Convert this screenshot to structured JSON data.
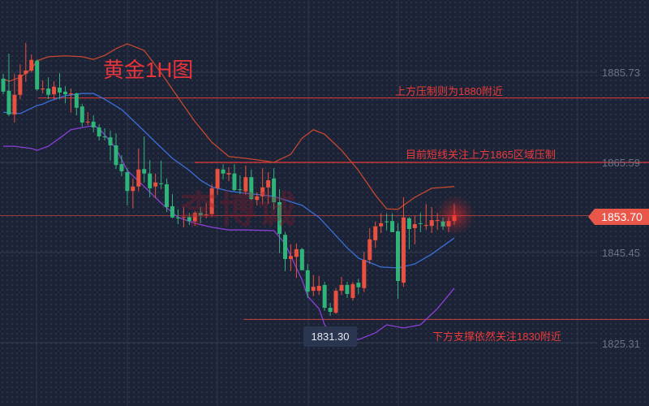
{
  "title": "黄金1H图",
  "watermark": "李博诚",
  "annotations": {
    "resistance_1880": "上方压制则为1880附近",
    "resistance_1865": "目前短线关注上方1865区域压制",
    "support_1830": "下方支撑依然关注1830附近"
  },
  "current_price_label": "1853.70",
  "low_label": "1831.30",
  "colors": {
    "up": "#e8513f",
    "down": "#2fb47a",
    "upper_band": "#c4472f",
    "middle_band": "#3b6fd9",
    "lower_band": "#8b40d8",
    "level_line": "#e83a3a",
    "background": "#1c2336"
  },
  "chart_data": {
    "type": "candlestick",
    "title": "黄金1H图",
    "y_ticks": [
      "1885.73",
      "1865.59",
      "1845.45",
      "1825.31"
    ],
    "ylim": [
      1814.0,
      1903.0
    ],
    "grid": true,
    "horizontal_levels": [
      1880,
      1865.59,
      1853.7,
      1830.5
    ],
    "candles": [
      [
        1884.3,
        1885.4,
        1880.8,
        1881.4
      ],
      [
        1881.6,
        1889.9,
        1875.9,
        1876.3
      ],
      [
        1876.3,
        1885.4,
        1874.5,
        1880.7
      ],
      [
        1880.7,
        1887.5,
        1879.7,
        1885.2
      ],
      [
        1885.4,
        1892.3,
        1883.6,
        1886.1
      ],
      [
        1886.1,
        1889.7,
        1885.7,
        1888.5
      ],
      [
        1888.3,
        1888.6,
        1881.6,
        1881.9
      ],
      [
        1881.9,
        1883.9,
        1881.0,
        1882.1
      ],
      [
        1882.1,
        1884.6,
        1879.7,
        1880.7
      ],
      [
        1880.8,
        1883.7,
        1879.7,
        1882.5
      ],
      [
        1882.3,
        1885.5,
        1879.7,
        1881.2
      ],
      [
        1881.4,
        1882.6,
        1878.8,
        1880.8
      ],
      [
        1880.8,
        1882.1,
        1876.7,
        1881.0
      ],
      [
        1881.0,
        1881.2,
        1876.1,
        1877.8
      ],
      [
        1878.1,
        1878.7,
        1873.6,
        1874.5
      ],
      [
        1874.5,
        1876.8,
        1873.9,
        1874.7
      ],
      [
        1874.7,
        1876.1,
        1872.3,
        1873.4
      ],
      [
        1873.4,
        1874.1,
        1870.5,
        1871.4
      ],
      [
        1871.4,
        1873.2,
        1870.5,
        1871.2
      ],
      [
        1871.2,
        1872.7,
        1866.0,
        1869.4
      ],
      [
        1869.4,
        1872.1,
        1864.1,
        1865.0
      ],
      [
        1865.2,
        1867.2,
        1862.5,
        1863.6
      ],
      [
        1863.4,
        1864.3,
        1856.0,
        1859.2
      ],
      [
        1859.2,
        1862.0,
        1855.3,
        1860.2
      ],
      [
        1860.2,
        1868.7,
        1859.1,
        1864.0
      ],
      [
        1864.1,
        1871.4,
        1861.1,
        1863.1
      ],
      [
        1863.1,
        1866.1,
        1857.8,
        1859.8
      ],
      [
        1860.2,
        1863.1,
        1857.6,
        1861.1
      ],
      [
        1860.9,
        1866.0,
        1859.6,
        1860.7
      ],
      [
        1860.7,
        1862.0,
        1854.5,
        1855.6
      ],
      [
        1855.8,
        1858.5,
        1853.1,
        1853.3
      ],
      [
        1853.3,
        1855.1,
        1851.8,
        1853.1
      ],
      [
        1853.3,
        1855.6,
        1851.1,
        1853.4
      ],
      [
        1853.4,
        1854.3,
        1851.6,
        1852.5
      ],
      [
        1852.4,
        1854.7,
        1851.4,
        1854.3
      ],
      [
        1854.3,
        1855.6,
        1852.0,
        1853.8
      ],
      [
        1853.8,
        1856.5,
        1853.1,
        1854.0
      ],
      [
        1854.0,
        1860.7,
        1853.4,
        1859.8
      ],
      [
        1859.8,
        1864.3,
        1858.3,
        1864.1
      ],
      [
        1864.0,
        1865.2,
        1861.8,
        1863.1
      ],
      [
        1862.9,
        1864.5,
        1861.4,
        1863.2
      ],
      [
        1863.1,
        1865.2,
        1859.2,
        1859.4
      ],
      [
        1859.6,
        1862.7,
        1858.5,
        1859.4
      ],
      [
        1859.1,
        1864.9,
        1858.3,
        1862.3
      ],
      [
        1862.3,
        1864.0,
        1857.1,
        1857.4
      ],
      [
        1857.2,
        1858.9,
        1856.0,
        1858.0
      ],
      [
        1858.0,
        1864.3,
        1856.3,
        1860.0
      ],
      [
        1860.0,
        1863.4,
        1856.3,
        1861.6
      ],
      [
        1862.0,
        1864.3,
        1855.1,
        1856.7
      ],
      [
        1856.7,
        1859.6,
        1845.3,
        1849.6
      ],
      [
        1849.4,
        1850.0,
        1841.3,
        1844.0
      ],
      [
        1844.0,
        1847.3,
        1841.3,
        1844.7
      ],
      [
        1844.5,
        1847.5,
        1839.8,
        1846.2
      ],
      [
        1846.2,
        1846.5,
        1841.5,
        1841.5
      ],
      [
        1841.5,
        1842.9,
        1835.3,
        1836.7
      ],
      [
        1836.9,
        1840.4,
        1835.7,
        1837.8
      ],
      [
        1836.9,
        1840.2,
        1836.0,
        1838.0
      ],
      [
        1838.2,
        1838.9,
        1832.4,
        1833.1
      ],
      [
        1833.1,
        1834.2,
        1831.3,
        1832.2
      ],
      [
        1832.0,
        1837.5,
        1831.7,
        1836.9
      ],
      [
        1836.9,
        1840.0,
        1836.0,
        1838.2
      ],
      [
        1838.2,
        1838.9,
        1835.3,
        1836.2
      ],
      [
        1835.3,
        1838.9,
        1834.7,
        1838.4
      ],
      [
        1838.7,
        1839.6,
        1836.2,
        1837.7
      ],
      [
        1837.5,
        1845.6,
        1836.6,
        1843.8
      ],
      [
        1843.8,
        1850.9,
        1842.9,
        1848.4
      ],
      [
        1848.2,
        1852.4,
        1846.5,
        1851.3
      ],
      [
        1851.3,
        1854.2,
        1849.8,
        1852.0
      ],
      [
        1852.4,
        1854.2,
        1850.4,
        1852.2
      ],
      [
        1852.5,
        1854.2,
        1850.0,
        1850.0
      ],
      [
        1850.2,
        1852.0,
        1835.1,
        1839.1
      ],
      [
        1838.7,
        1857.8,
        1837.8,
        1853.3
      ],
      [
        1853.1,
        1853.4,
        1846.2,
        1850.7
      ],
      [
        1850.9,
        1853.6,
        1847.3,
        1851.8
      ],
      [
        1852.0,
        1854.3,
        1850.0,
        1851.9
      ],
      [
        1851.4,
        1856.3,
        1850.5,
        1851.6
      ],
      [
        1851.4,
        1855.6,
        1849.8,
        1852.7
      ],
      [
        1852.5,
        1854.3,
        1850.5,
        1852.7
      ],
      [
        1852.4,
        1853.3,
        1850.5,
        1851.3
      ],
      [
        1851.3,
        1853.4,
        1850.0,
        1852.5
      ],
      [
        1852.5,
        1856.3,
        1851.6,
        1853.7
      ]
    ],
    "candle_fields": [
      "open",
      "high",
      "low",
      "close"
    ],
    "bands": {
      "upper": [
        [
          0,
          1884.3
        ],
        [
          1,
          1883.7
        ],
        [
          3,
          1884.6
        ],
        [
          5,
          1886.5
        ],
        [
          6,
          1888.3
        ],
        [
          8,
          1889.2
        ],
        [
          11,
          1889.4
        ],
        [
          14,
          1889.2
        ],
        [
          16,
          1888.6
        ],
        [
          18,
          1889.5
        ],
        [
          20,
          1891.0
        ],
        [
          22,
          1892.1
        ],
        [
          25,
          1890.6
        ],
        [
          28,
          1885.6
        ],
        [
          31,
          1880.1
        ],
        [
          34,
          1874.7
        ],
        [
          37,
          1870.1
        ],
        [
          40,
          1866.9
        ],
        [
          43,
          1866.5
        ],
        [
          46,
          1866.0
        ],
        [
          48,
          1865.6
        ],
        [
          51,
          1867.4
        ],
        [
          53,
          1871.0
        ],
        [
          55,
          1872.9
        ],
        [
          57,
          1871.9
        ],
        [
          60,
          1868.3
        ],
        [
          63,
          1863.8
        ],
        [
          66,
          1858.3
        ],
        [
          68,
          1855.2
        ],
        [
          70,
          1855.1
        ],
        [
          73,
          1857.8
        ],
        [
          76,
          1859.8
        ],
        [
          80,
          1860.2
        ]
      ],
      "middle": [
        [
          0,
          1876.8
        ],
        [
          3,
          1876.5
        ],
        [
          6,
          1878.3
        ],
        [
          7,
          1878.6
        ],
        [
          8,
          1879.2
        ],
        [
          11,
          1880.5
        ],
        [
          14,
          1881.0
        ],
        [
          16,
          1881.0
        ],
        [
          18,
          1879.7
        ],
        [
          21,
          1877.4
        ],
        [
          24,
          1873.8
        ],
        [
          27,
          1870.1
        ],
        [
          30,
          1866.5
        ],
        [
          33,
          1863.8
        ],
        [
          35,
          1861.6
        ],
        [
          37,
          1860.1
        ],
        [
          40,
          1859.2
        ],
        [
          43,
          1858.7
        ],
        [
          46,
          1858.3
        ],
        [
          48,
          1858.0
        ],
        [
          53,
          1856.0
        ],
        [
          56,
          1853.3
        ],
        [
          61,
          1846.5
        ],
        [
          63,
          1844.2
        ],
        [
          67,
          1842.2
        ],
        [
          70,
          1842.0
        ],
        [
          73,
          1842.9
        ],
        [
          76,
          1845.1
        ],
        [
          80,
          1848.7
        ]
      ],
      "lower": [
        [
          0,
          1869.2
        ],
        [
          2,
          1869.2
        ],
        [
          5,
          1868.7
        ],
        [
          6,
          1868.3
        ],
        [
          8,
          1869.2
        ],
        [
          10,
          1871.0
        ],
        [
          12,
          1872.9
        ],
        [
          14,
          1873.4
        ],
        [
          16,
          1873.8
        ],
        [
          17,
          1873.2
        ],
        [
          20,
          1868.7
        ],
        [
          22,
          1863.8
        ],
        [
          25,
          1860.2
        ],
        [
          28,
          1856.5
        ],
        [
          31,
          1853.3
        ],
        [
          34,
          1852.0
        ],
        [
          37,
          1851.1
        ],
        [
          40,
          1850.5
        ],
        [
          43,
          1850.5
        ],
        [
          48,
          1850.35
        ],
        [
          50,
          1847.4
        ],
        [
          53,
          1839.3
        ],
        [
          54,
          1835.7
        ],
        [
          56,
          1832.9
        ],
        [
          57,
          1829.3
        ],
        [
          58,
          1827.5
        ],
        [
          60,
          1825.7
        ],
        [
          63,
          1826.0
        ],
        [
          66,
          1827.5
        ],
        [
          68,
          1829.3
        ],
        [
          71,
          1828.6
        ],
        [
          74,
          1829.3
        ],
        [
          77,
          1832.9
        ],
        [
          80,
          1837.5
        ]
      ]
    }
  }
}
